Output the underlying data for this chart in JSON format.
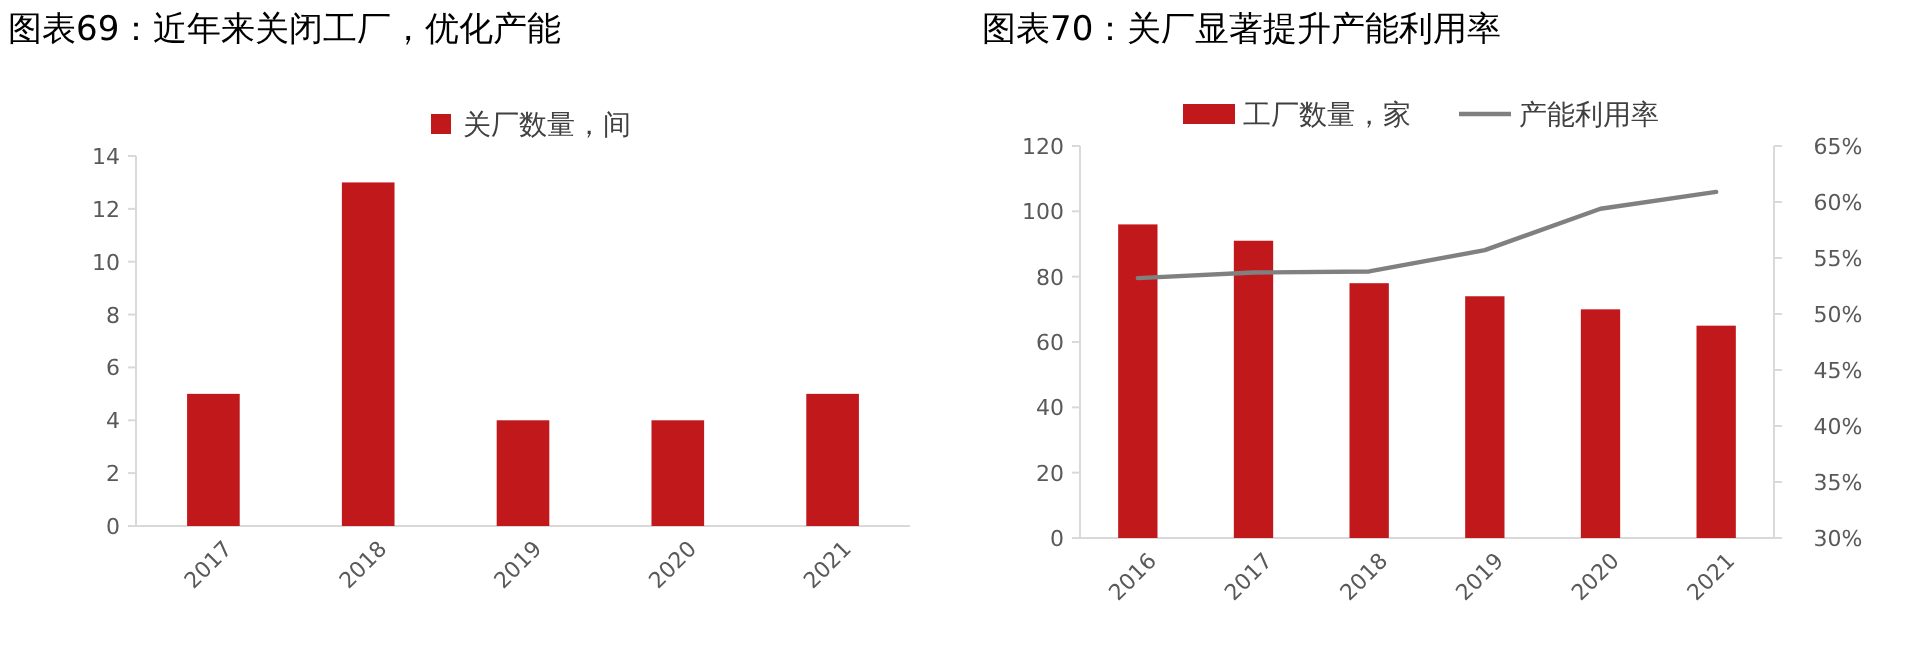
{
  "chart_data": [
    {
      "type": "bar",
      "title": "图表69：近年来关闭工厂，优化产能",
      "categories": [
        "2017",
        "2018",
        "2019",
        "2020",
        "2021"
      ],
      "series": [
        {
          "name": "关厂数量，间",
          "color": "#c0181b",
          "values": [
            5,
            13,
            4,
            4,
            5
          ]
        }
      ],
      "ylim": [
        0,
        14
      ],
      "yticks": [
        0,
        2,
        4,
        6,
        8,
        10,
        12,
        14
      ],
      "legend": "top"
    },
    {
      "type": "bar",
      "title": "图表70：关厂显著提升产能利用率",
      "categories": [
        "2016",
        "2017",
        "2018",
        "2019",
        "2020",
        "2021"
      ],
      "series": [
        {
          "name": "工厂数量，家",
          "color": "#c0181b",
          "values": [
            96,
            91,
            78,
            74,
            70,
            65
          ]
        },
        {
          "name": "产能利用率",
          "type": "line",
          "axis": "y2",
          "color": "#808080",
          "values": [
            53.2,
            53.7,
            53.8,
            55.7,
            59.4,
            60.9
          ]
        }
      ],
      "ylim": [
        0,
        120
      ],
      "yticks": [
        0,
        20,
        40,
        60,
        80,
        100,
        120
      ],
      "y2lim": [
        30,
        65
      ],
      "y2ticks": [
        {
          "value": 30,
          "label": "30%"
        },
        {
          "value": 35,
          "label": "35%"
        },
        {
          "value": 40,
          "label": "40%"
        },
        {
          "value": 45,
          "label": "45%"
        },
        {
          "value": 50,
          "label": "50%"
        },
        {
          "value": 55,
          "label": "55%"
        },
        {
          "value": 60,
          "label": "60%"
        },
        {
          "value": 65,
          "label": "65%"
        }
      ],
      "legend": "top"
    }
  ]
}
